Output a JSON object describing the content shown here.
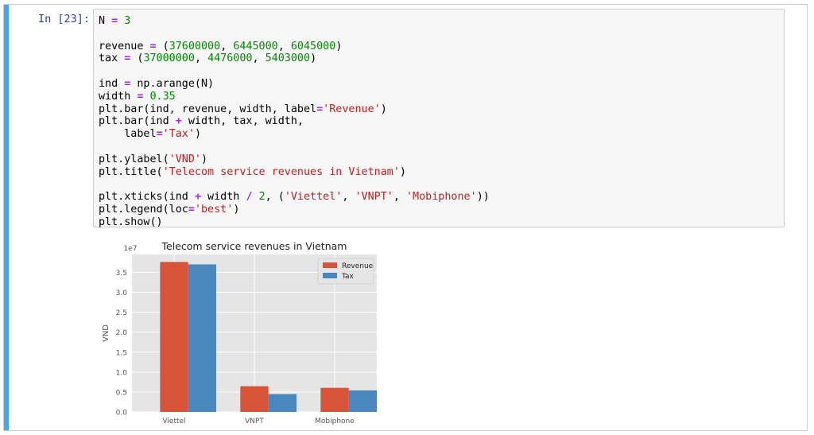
{
  "cell": {
    "prompt": "In [23]:",
    "code_lines": [
      [
        {
          "t": "N "
        },
        {
          "t": "=",
          "k": "o"
        },
        {
          "t": " "
        },
        {
          "t": "3",
          "k": "n"
        }
      ],
      [],
      [
        {
          "t": "revenue "
        },
        {
          "t": "=",
          "k": "o"
        },
        {
          "t": " ("
        },
        {
          "t": "37600000",
          "k": "n"
        },
        {
          "t": ", "
        },
        {
          "t": "6445000",
          "k": "n"
        },
        {
          "t": ", "
        },
        {
          "t": "6045000",
          "k": "n"
        },
        {
          "t": ")"
        }
      ],
      [
        {
          "t": "tax "
        },
        {
          "t": "=",
          "k": "o"
        },
        {
          "t": " ("
        },
        {
          "t": "37000000",
          "k": "n"
        },
        {
          "t": ", "
        },
        {
          "t": "4476000",
          "k": "n"
        },
        {
          "t": ", "
        },
        {
          "t": "5403000",
          "k": "n"
        },
        {
          "t": ")"
        }
      ],
      [],
      [
        {
          "t": "ind "
        },
        {
          "t": "=",
          "k": "o"
        },
        {
          "t": " np.arange(N)"
        }
      ],
      [
        {
          "t": "width "
        },
        {
          "t": "=",
          "k": "o"
        },
        {
          "t": " "
        },
        {
          "t": "0.35",
          "k": "n"
        }
      ],
      [
        {
          "t": "plt.bar(ind, revenue, width, label"
        },
        {
          "t": "=",
          "k": "o"
        },
        {
          "t": "'Revenue'",
          "k": "s"
        },
        {
          "t": ")"
        }
      ],
      [
        {
          "t": "plt.bar(ind "
        },
        {
          "t": "+",
          "k": "o"
        },
        {
          "t": " width, tax, width,"
        }
      ],
      [
        {
          "t": "    label"
        },
        {
          "t": "=",
          "k": "o"
        },
        {
          "t": "'Tax'",
          "k": "s"
        },
        {
          "t": ")"
        }
      ],
      [],
      [
        {
          "t": "plt.ylabel("
        },
        {
          "t": "'VND'",
          "k": "s"
        },
        {
          "t": ")"
        }
      ],
      [
        {
          "t": "plt.title("
        },
        {
          "t": "'Telecom service revenues in Vietnam'",
          "k": "s"
        },
        {
          "t": ")"
        }
      ],
      [],
      [
        {
          "t": "plt.xticks(ind "
        },
        {
          "t": "+",
          "k": "o"
        },
        {
          "t": " width "
        },
        {
          "t": "/",
          "k": "o"
        },
        {
          "t": " "
        },
        {
          "t": "2",
          "k": "n"
        },
        {
          "t": ", ("
        },
        {
          "t": "'Viettel'",
          "k": "s"
        },
        {
          "t": ", "
        },
        {
          "t": "'VNPT'",
          "k": "s"
        },
        {
          "t": ", "
        },
        {
          "t": "'Mobiphone'",
          "k": "s"
        },
        {
          "t": "))"
        }
      ],
      [
        {
          "t": "plt.legend(loc"
        },
        {
          "t": "=",
          "k": "o"
        },
        {
          "t": "'best'",
          "k": "s"
        },
        {
          "t": ")"
        }
      ],
      [
        {
          "t": "plt.show()"
        }
      ]
    ]
  },
  "chart_data": {
    "type": "bar",
    "title": "Telecom service revenues in Vietnam",
    "ylabel": "VND",
    "xlabel": "",
    "offset_label": "1e7",
    "categories": [
      "Viettel",
      "VNPT",
      "Mobiphone"
    ],
    "series": [
      {
        "name": "Revenue",
        "values": [
          37600000,
          6445000,
          6045000
        ],
        "color": "#d9533b"
      },
      {
        "name": "Tax",
        "values": [
          37000000,
          4476000,
          5403000
        ],
        "color": "#4a87bf"
      }
    ],
    "ylim": [
      0,
      39480000
    ],
    "yticks": [
      0,
      5000000,
      10000000,
      15000000,
      20000000,
      25000000,
      30000000,
      35000000
    ],
    "ytick_labels": [
      "0.0",
      "0.5",
      "1.0",
      "1.5",
      "2.0",
      "2.5",
      "3.0",
      "3.5"
    ],
    "grid": true,
    "legend_position": "top-right",
    "style": "ggplot"
  }
}
